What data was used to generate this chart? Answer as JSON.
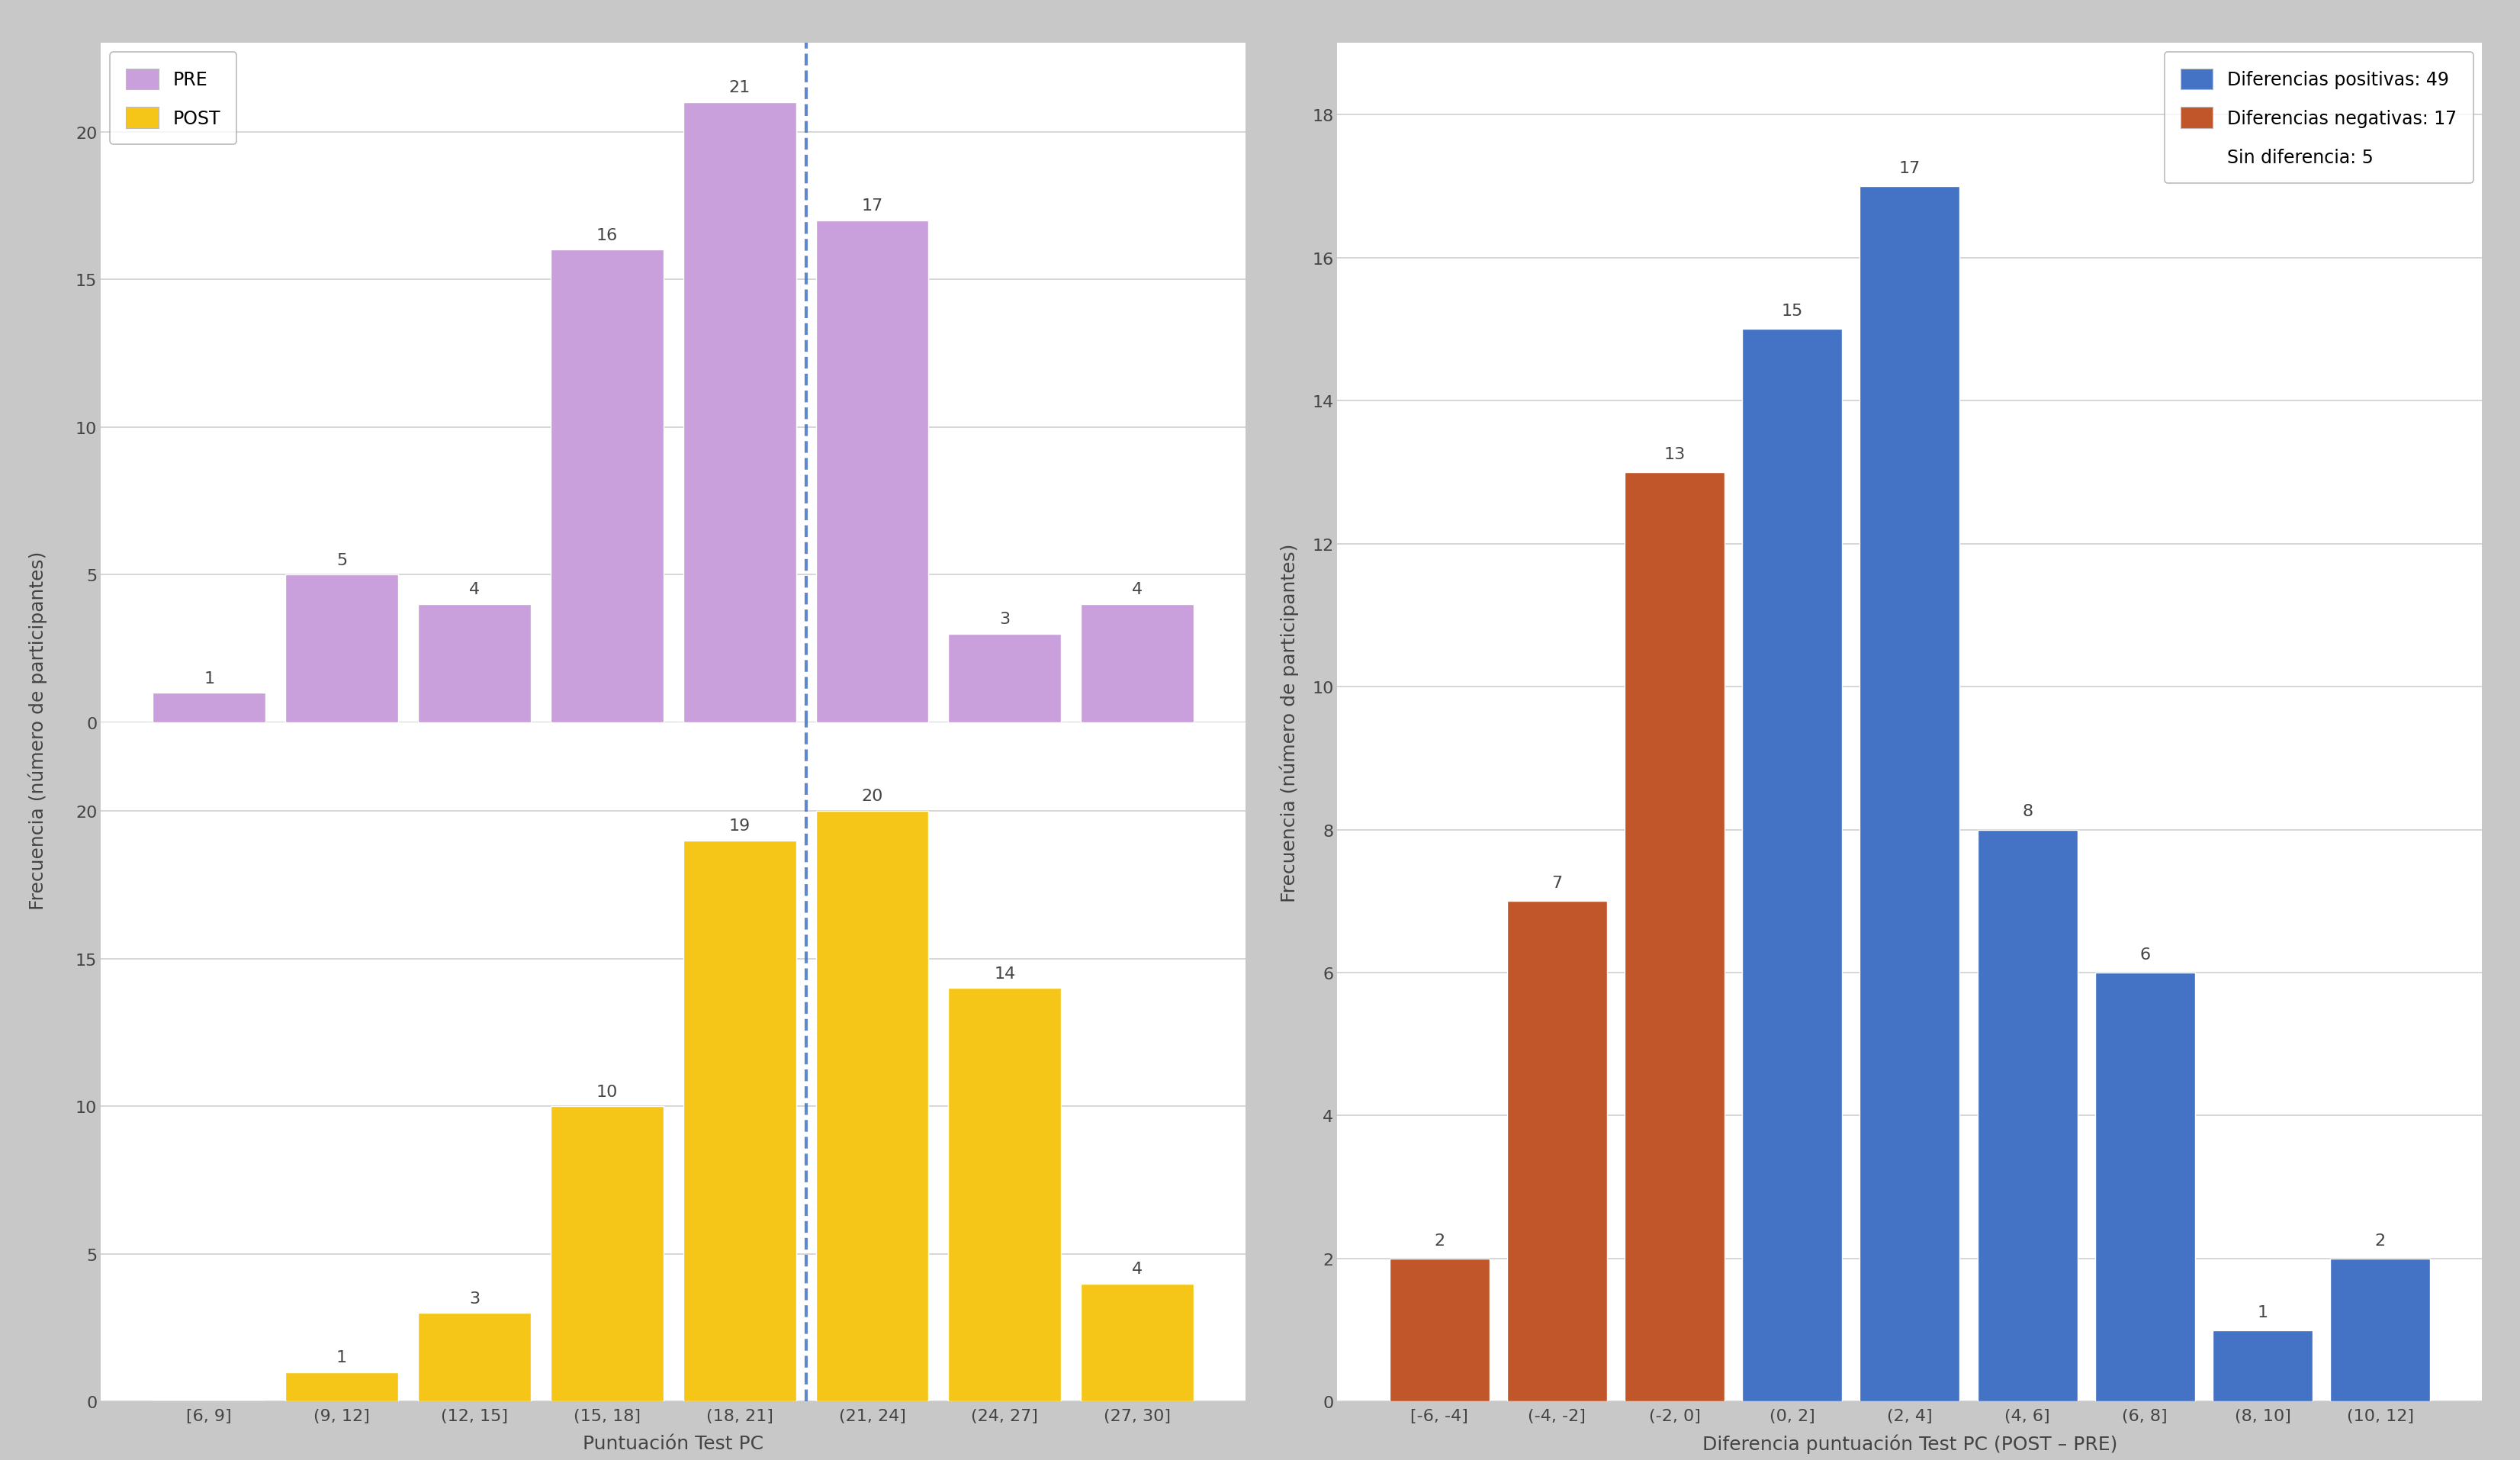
{
  "pre_values": [
    1,
    5,
    4,
    16,
    21,
    17,
    3,
    4
  ],
  "post_values": [
    0,
    1,
    3,
    10,
    19,
    20,
    14,
    4
  ],
  "left_categories": [
    "[6, 9]",
    "(9, 12]",
    "(12, 15]",
    "(15, 18]",
    "(18, 21]",
    "(21, 24]",
    "(24, 27]",
    "(27, 30]"
  ],
  "pre_color": "#c9a0dc",
  "post_color": "#f5c518",
  "dashed_line_x": 4.5,
  "left_xlabel": "Puntuación Test PC",
  "left_ylabel": "Frecuencia (número de participantes)",
  "diff_categories": [
    "[-6, -4]",
    "(-4, -2]",
    "(-2, 0]",
    "(0, 2]",
    "(2, 4]",
    "(4, 6]",
    "(6, 8]",
    "(8, 10]",
    "(10, 12]"
  ],
  "diff_values": [
    2,
    7,
    13,
    15,
    17,
    8,
    6,
    1,
    2
  ],
  "diff_colors": [
    "#c0562a",
    "#c0562a",
    "#c0562a",
    "#4472c4",
    "#4472c4",
    "#4472c4",
    "#4472c4",
    "#4472c4",
    "#4472c4"
  ],
  "right_xlabel": "Diferencia puntuación Test PC (POST – PRE)",
  "right_ylabel": "Frecuencia (número de participantes)",
  "right_legend_pos_label": "Diferencias positivas: 49",
  "right_legend_neg_label": "Diferencias negativas: 17",
  "right_legend_none_label": "Sin diferencia: 5",
  "pos_color": "#4472c4",
  "neg_color": "#c0562a",
  "pre_label": "PRE",
  "post_label": "POST",
  "background_color": "#c8c8c8",
  "panel_bg_color": "#ffffff",
  "plot_bg_color": "#ffffff",
  "grid_color": "#d0d0d0",
  "dashed_color": "#4472c4",
  "left_ylim": [
    0,
    23
  ],
  "right_ylim": [
    0,
    19
  ],
  "right_yticks": [
    0,
    2,
    4,
    6,
    8,
    10,
    12,
    14,
    16,
    18
  ],
  "left_yticks": [
    0,
    5,
    10,
    15,
    20
  ],
  "bar_width": 0.85,
  "label_fontsize": 16,
  "tick_fontsize": 16,
  "axis_label_fontsize": 18,
  "legend_fontsize": 17
}
